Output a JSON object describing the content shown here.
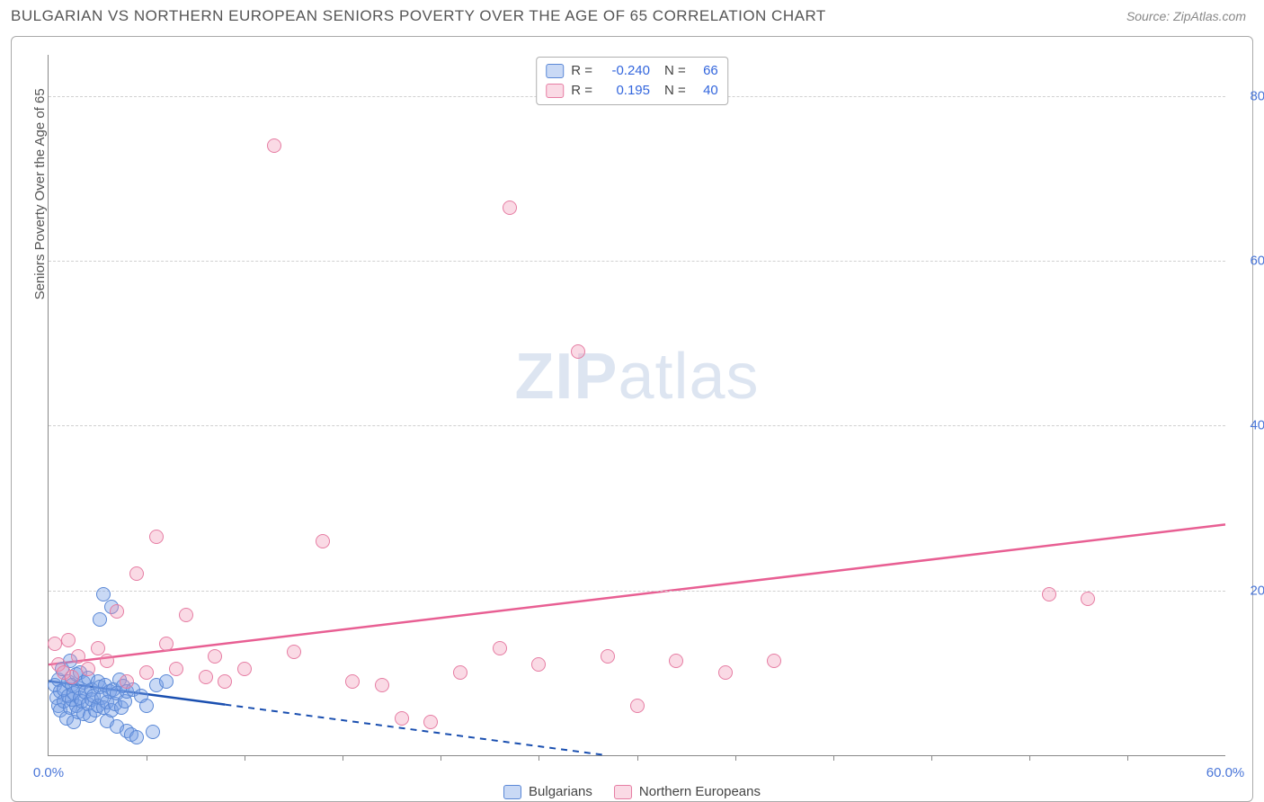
{
  "header": {
    "title": "BULGARIAN VS NORTHERN EUROPEAN SENIORS POVERTY OVER THE AGE OF 65 CORRELATION CHART",
    "source": "Source: ZipAtlas.com"
  },
  "chart": {
    "type": "scatter",
    "background_color": "#ffffff",
    "border_color": "#aaaaaa",
    "grid_color": "#d0d0d0",
    "axis_color": "#888888",
    "watermark_text_bold": "ZIP",
    "watermark_text_rest": "atlas",
    "watermark_color": "rgba(120,150,200,0.25)",
    "yaxis_label": "Seniors Poverty Over the Age of 65",
    "yaxis_label_color": "#555555",
    "xlim": [
      0,
      60
    ],
    "ylim": [
      0,
      85
    ],
    "yticks": [
      {
        "v": 20,
        "label": "20.0%"
      },
      {
        "v": 40,
        "label": "40.0%"
      },
      {
        "v": 60,
        "label": "60.0%"
      },
      {
        "v": 80,
        "label": "80.0%"
      }
    ],
    "ytick_color": "#4a76d8",
    "xticks_major": [
      {
        "v": 0,
        "label": "0.0%"
      },
      {
        "v": 60,
        "label": "60.0%"
      }
    ],
    "xtick_color": "#4a76d8",
    "xticks_minor": [
      5,
      10,
      15,
      20,
      25,
      30,
      35,
      40,
      45,
      50,
      55
    ],
    "point_radius": 8,
    "point_stroke_width": 1.5,
    "series": [
      {
        "key": "bulgarians",
        "label": "Bulgarians",
        "fill": "rgba(120,160,230,0.40)",
        "stroke": "#5a88d6",
        "trend_color": "#1a4fb0",
        "trend_solid_end_x": 9,
        "trend_y_at_0": 9.0,
        "trend_y_at_60": -10.0,
        "dash_after_solid": true,
        "R": "-0.240",
        "N": "66",
        "points": [
          [
            0.3,
            8.5
          ],
          [
            0.4,
            7.0
          ],
          [
            0.5,
            6.0
          ],
          [
            0.5,
            9.2
          ],
          [
            0.6,
            7.8
          ],
          [
            0.6,
            5.5
          ],
          [
            0.7,
            10.5
          ],
          [
            0.8,
            6.5
          ],
          [
            0.8,
            8.0
          ],
          [
            0.9,
            4.5
          ],
          [
            1.0,
            9.0
          ],
          [
            1.0,
            7.2
          ],
          [
            1.1,
            5.8
          ],
          [
            1.1,
            11.5
          ],
          [
            1.2,
            8.5
          ],
          [
            1.2,
            6.8
          ],
          [
            1.3,
            7.5
          ],
          [
            1.3,
            4.0
          ],
          [
            1.4,
            9.8
          ],
          [
            1.4,
            6.0
          ],
          [
            1.5,
            8.2
          ],
          [
            1.5,
            5.2
          ],
          [
            1.6,
            7.0
          ],
          [
            1.6,
            10.0
          ],
          [
            1.7,
            6.5
          ],
          [
            1.8,
            8.8
          ],
          [
            1.8,
            5.0
          ],
          [
            1.9,
            7.6
          ],
          [
            2.0,
            6.2
          ],
          [
            2.0,
            9.4
          ],
          [
            2.1,
            4.8
          ],
          [
            2.2,
            8.0
          ],
          [
            2.2,
            6.8
          ],
          [
            2.3,
            7.2
          ],
          [
            2.4,
            5.5
          ],
          [
            2.5,
            9.0
          ],
          [
            2.5,
            6.0
          ],
          [
            2.6,
            8.3
          ],
          [
            2.6,
            16.5
          ],
          [
            2.7,
            7.0
          ],
          [
            2.8,
            5.8
          ],
          [
            2.8,
            19.5
          ],
          [
            2.9,
            8.5
          ],
          [
            3.0,
            6.4
          ],
          [
            3.0,
            4.2
          ],
          [
            3.1,
            7.8
          ],
          [
            3.2,
            5.5
          ],
          [
            3.2,
            18.0
          ],
          [
            3.3,
            8.0
          ],
          [
            3.4,
            6.2
          ],
          [
            3.5,
            7.5
          ],
          [
            3.5,
            3.5
          ],
          [
            3.6,
            9.2
          ],
          [
            3.7,
            5.8
          ],
          [
            3.8,
            8.4
          ],
          [
            3.9,
            6.6
          ],
          [
            4.0,
            3.0
          ],
          [
            4.0,
            7.8
          ],
          [
            4.2,
            2.5
          ],
          [
            4.3,
            8.0
          ],
          [
            4.5,
            2.2
          ],
          [
            4.7,
            7.2
          ],
          [
            5.0,
            6.0
          ],
          [
            5.3,
            2.8
          ],
          [
            5.5,
            8.5
          ],
          [
            6.0,
            9.0
          ]
        ]
      },
      {
        "key": "northern_europeans",
        "label": "Northern Europeans",
        "fill": "rgba(240,150,180,0.35)",
        "stroke": "#e67da3",
        "trend_color": "#e85f93",
        "trend_solid_end_x": 60,
        "trend_y_at_0": 11.0,
        "trend_y_at_60": 28.0,
        "dash_after_solid": false,
        "R": "0.195",
        "N": "40",
        "points": [
          [
            0.3,
            13.5
          ],
          [
            0.5,
            11.0
          ],
          [
            0.8,
            10.0
          ],
          [
            1.0,
            14.0
          ],
          [
            1.2,
            9.5
          ],
          [
            1.5,
            12.0
          ],
          [
            2.0,
            10.5
          ],
          [
            2.5,
            13.0
          ],
          [
            3.0,
            11.5
          ],
          [
            3.5,
            17.5
          ],
          [
            4.0,
            9.0
          ],
          [
            4.5,
            22.0
          ],
          [
            5.0,
            10.0
          ],
          [
            5.5,
            26.5
          ],
          [
            6.0,
            13.5
          ],
          [
            6.5,
            10.5
          ],
          [
            7.0,
            17.0
          ],
          [
            8.0,
            9.5
          ],
          [
            8.5,
            12.0
          ],
          [
            9.0,
            9.0
          ],
          [
            10.0,
            10.5
          ],
          [
            11.5,
            74.0
          ],
          [
            12.5,
            12.5
          ],
          [
            14.0,
            26.0
          ],
          [
            15.5,
            9.0
          ],
          [
            17.0,
            8.5
          ],
          [
            18.0,
            4.5
          ],
          [
            19.5,
            4.0
          ],
          [
            21.0,
            10.0
          ],
          [
            23.0,
            13.0
          ],
          [
            23.5,
            66.5
          ],
          [
            25.0,
            11.0
          ],
          [
            27.0,
            49.0
          ],
          [
            28.5,
            12.0
          ],
          [
            30.0,
            6.0
          ],
          [
            32.0,
            11.5
          ],
          [
            34.5,
            10.0
          ],
          [
            37.0,
            11.5
          ],
          [
            51.0,
            19.5
          ],
          [
            53.0,
            19.0
          ]
        ]
      }
    ],
    "corr_legend": {
      "R_label": "R =",
      "N_label": "N =",
      "value_color": "#3366dd"
    },
    "series_legend_position": "bottom-center"
  }
}
